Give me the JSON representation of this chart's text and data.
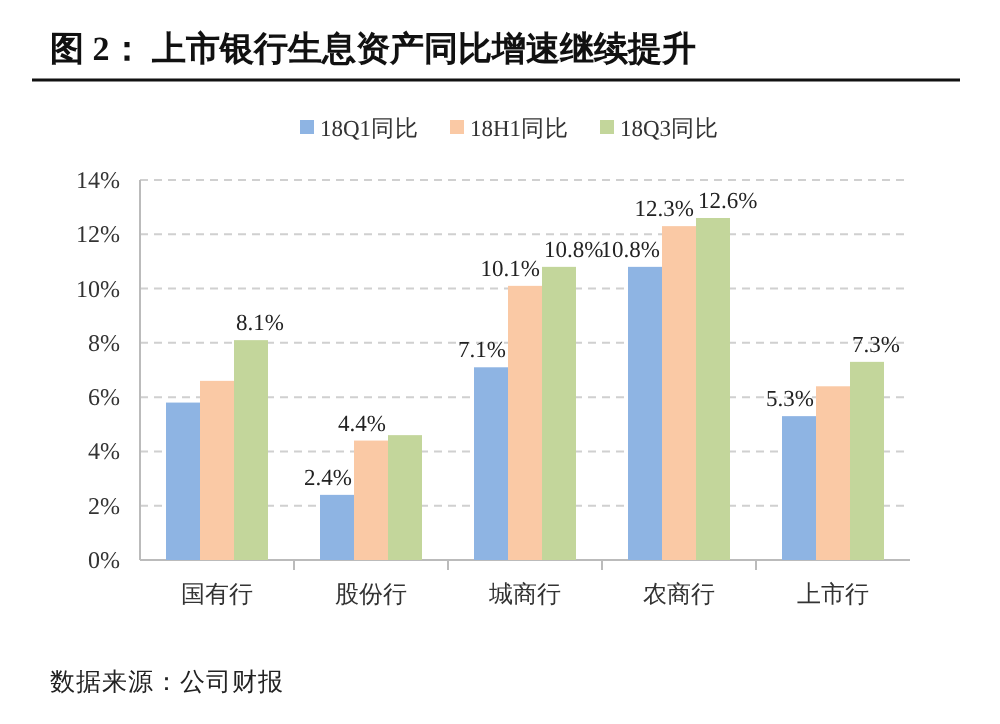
{
  "chart_data": {
    "type": "bar",
    "title": "图 2：  上市银行生息资产同比增速继续提升",
    "categories": [
      "国有行",
      "股份行",
      "城商行",
      "农商行",
      "上市行"
    ],
    "series": [
      {
        "name": "18Q1同比",
        "color": "#8eb4e3",
        "values": [
          5.8,
          2.4,
          7.1,
          10.8,
          5.3
        ],
        "value_labels": [
          null,
          "2.4%",
          "7.1%",
          "10.8%",
          "5.3%"
        ]
      },
      {
        "name": "18H1同比",
        "color": "#fac9a5",
        "values": [
          6.6,
          4.4,
          10.1,
          12.3,
          6.4
        ],
        "value_labels": [
          null,
          "4.4%",
          "10.1%",
          "12.3%",
          null
        ]
      },
      {
        "name": "18Q3同比",
        "color": "#c3d69b",
        "values": [
          8.1,
          4.6,
          10.8,
          12.6,
          7.3
        ],
        "value_labels": [
          "8.1%",
          null,
          "10.8%",
          "12.6%",
          "7.3%"
        ]
      }
    ],
    "ylim": [
      0,
      14
    ],
    "yticks": [
      {
        "value": 0,
        "label": "0%"
      },
      {
        "value": 2,
        "label": "2%"
      },
      {
        "value": 4,
        "label": "4%"
      },
      {
        "value": 6,
        "label": "6%"
      },
      {
        "value": 8,
        "label": "8%"
      },
      {
        "value": 10,
        "label": "10%"
      },
      {
        "value": 12,
        "label": "12%"
      },
      {
        "value": 14,
        "label": "14%"
      }
    ],
    "grid": "y",
    "legend": "top",
    "annotations": [
      "数据来源：公司财报"
    ]
  }
}
